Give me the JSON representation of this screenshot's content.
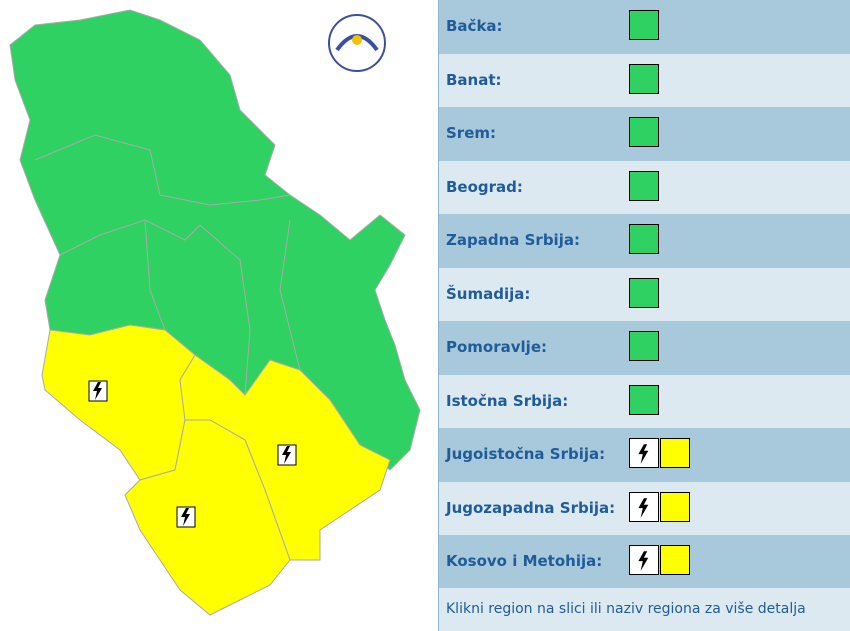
{
  "regions": [
    {
      "name": "Bačka:",
      "color": "#2ed162"
    },
    {
      "name": "Banat:",
      "color": "#2ed162"
    },
    {
      "name": "Srem:",
      "color": "#2ed162"
    },
    {
      "name": "Beograd:",
      "color": "#2ed162"
    },
    {
      "name": "Zapadna Srbija:",
      "color": "#2ed162"
    },
    {
      "name": "Šumadija:",
      "color": "#2ed162"
    },
    {
      "name": "Pomoravlje:",
      "color": "#2ed162"
    },
    {
      "name": "Istočna Srbija:",
      "color": "#2ed162"
    },
    {
      "name": "Jugoistočna Srbija:",
      "color": "#ffff00",
      "hazard": "thunderstorm"
    },
    {
      "name": "Jugozapadna Srbija:",
      "color": "#ffff00",
      "hazard": "thunderstorm"
    },
    {
      "name": "Kosovo i Metohija:",
      "color": "#ffff00",
      "hazard": "thunderstorm"
    }
  ],
  "footer": "Klikni region na slici ili naziv regiona za više detalja"
}
